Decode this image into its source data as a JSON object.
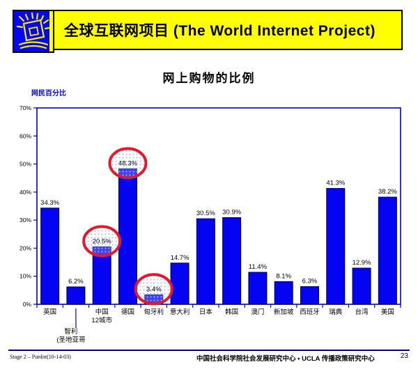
{
  "header": {
    "title": "全球互联网项目 (The World Internet Project)",
    "logo": "world-internet-project-logo"
  },
  "slide": {
    "title": "网上购物的比例"
  },
  "footer": {
    "left": "Stage 2 – PunInt(10-14-03)",
    "center": "中国社会科学院社会发展研究中心 • UCLA 传播政策研究中心",
    "page": "23"
  },
  "colors": {
    "banner_bg": "#FFFF00",
    "banner_border": "#000000",
    "logo_bg": "#0008F0",
    "logo_stroke": "#FFE800",
    "bar_blue": "#0404F2",
    "bar_border": "#000030",
    "axis_blue": "#0000B8",
    "circle_red": "#E4182B",
    "dot_fill": "#9FBCF2",
    "footer_line": "#000080",
    "ylabel_blue": "#0000CC"
  },
  "chart_data": {
    "type": "bar",
    "title": "网上购物的比例",
    "xlabel": "",
    "ylabel": "网民百分比",
    "ylim": [
      0,
      70
    ],
    "ytick_step": 10,
    "yticks": [
      "0%",
      "10%",
      "20%",
      "30%",
      "40%",
      "50%",
      "60%",
      "70%"
    ],
    "grid": false,
    "legend": false,
    "categories": [
      "英国",
      "智利\n(圣地亚哥",
      "中国\n12城市",
      "德国",
      "匈牙利",
      "意大利",
      "日本",
      "韩国",
      "澳门",
      "新加坡",
      "西班牙",
      "瑞典",
      "台湾",
      "美国"
    ],
    "values": [
      34.3,
      6.2,
      20.5,
      48.3,
      3.4,
      14.7,
      30.5,
      30.9,
      11.4,
      8.1,
      6.3,
      41.3,
      12.9,
      38.2
    ],
    "value_labels": [
      "34.3%",
      "6.2%",
      "20.5%",
      "48.3%",
      "3.4%",
      "14.7%",
      "30.5%",
      "30.9%",
      "11.4%",
      "8.1%",
      "6.3%",
      "41.3%",
      "12.9%",
      "38.2%"
    ],
    "circled_indices": [
      2,
      3,
      4
    ],
    "dropped_label_index": 1
  }
}
